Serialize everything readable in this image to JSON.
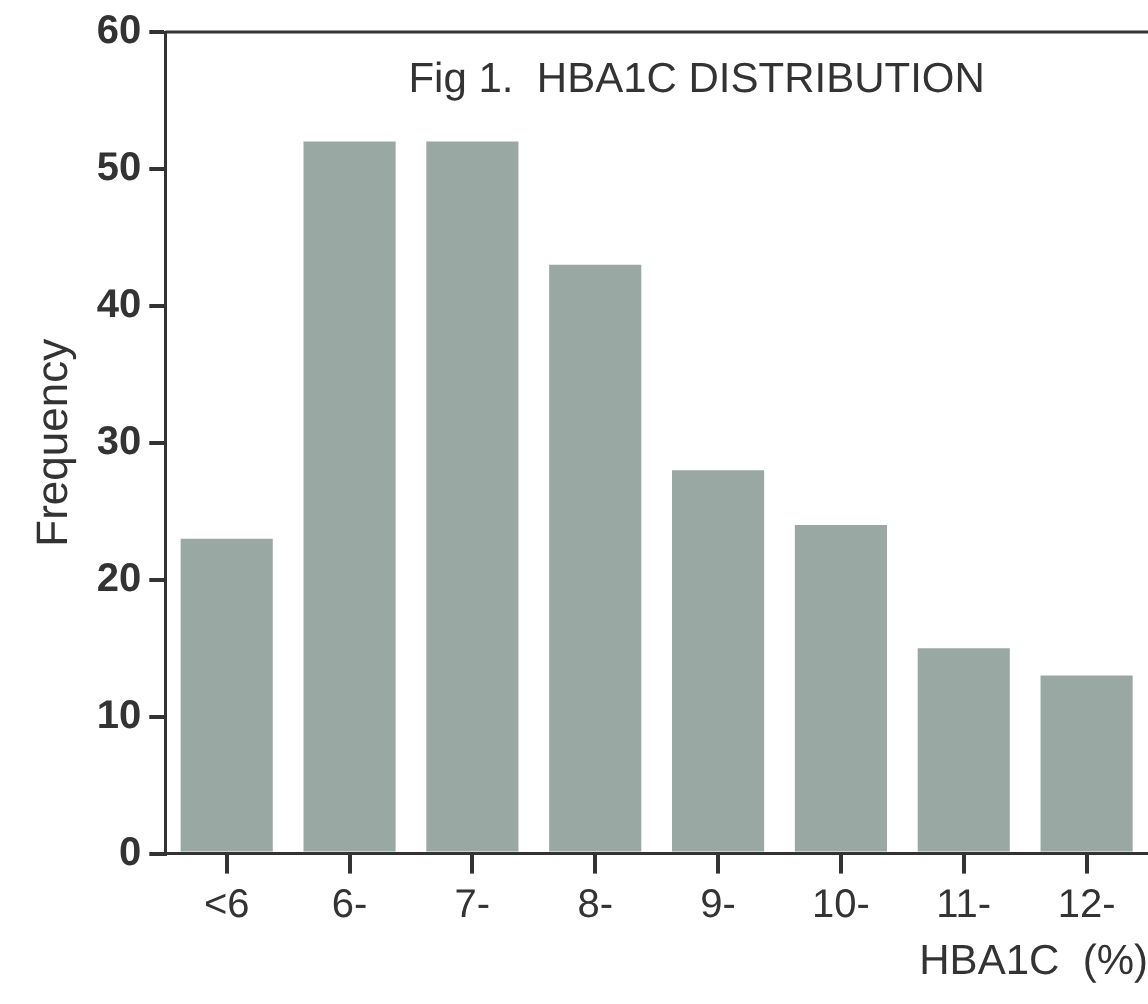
{
  "chart_data": {
    "type": "bar",
    "title": "Fig 1.  HBA1C DISTRIBUTION",
    "xlabel": "HBA1C  (%)",
    "ylabel": "Frequency",
    "categories": [
      "<6",
      "6-",
      "7-",
      "8-",
      "9-",
      "10-",
      "11-",
      "12-"
    ],
    "values": [
      23,
      52,
      52,
      43,
      28,
      24,
      15,
      13
    ],
    "color": "#9aa8a4",
    "ylim": [
      0,
      60
    ],
    "yticks": [
      0,
      10,
      20,
      30,
      40,
      50,
      60
    ],
    "grid": false,
    "legend": false
  }
}
